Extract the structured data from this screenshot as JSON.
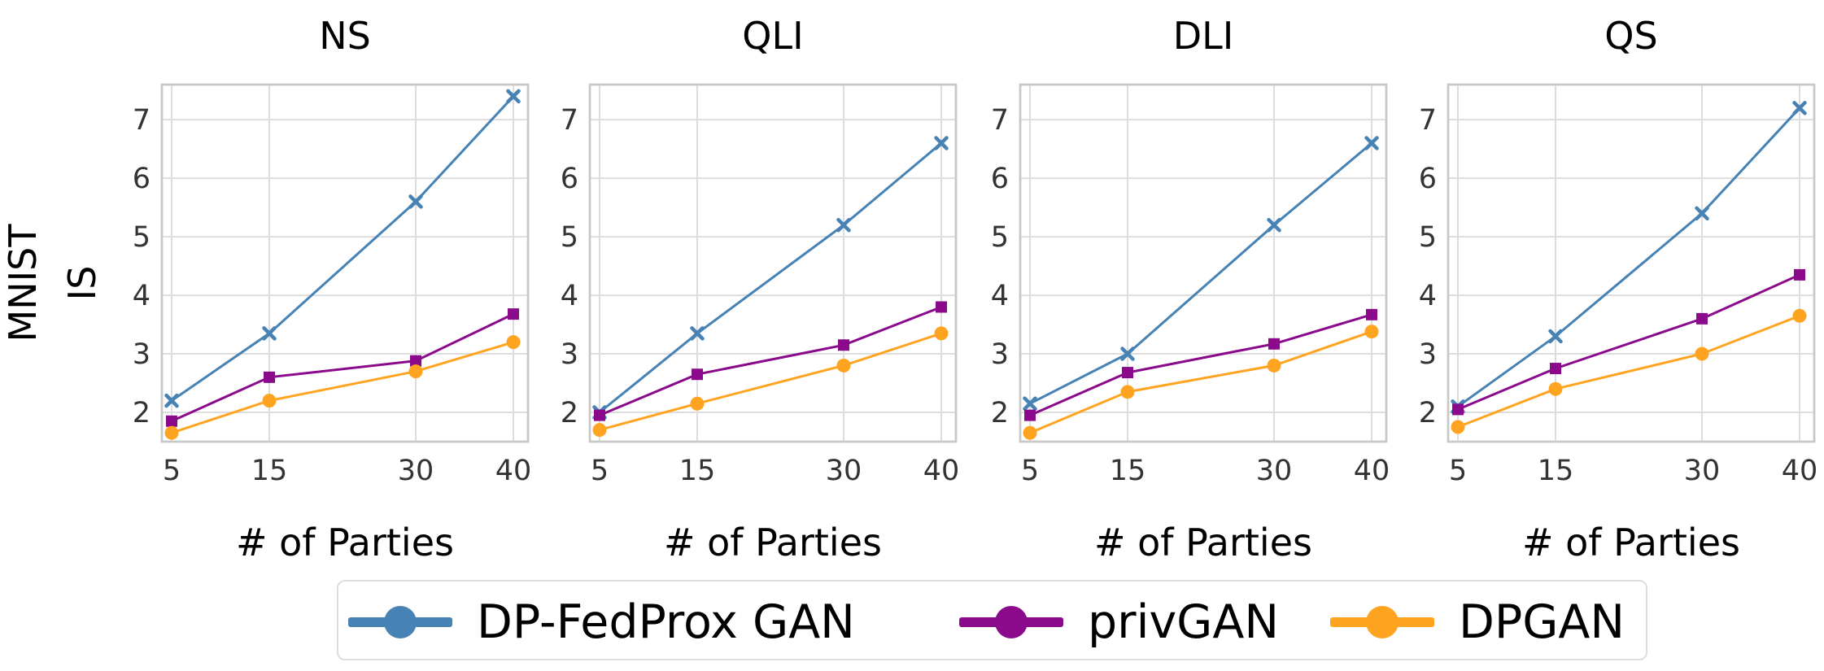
{
  "figure": {
    "ylabel_lines": [
      "MNIST",
      "IS"
    ]
  },
  "colors": {
    "DP-FedProx GAN": "#4682b4",
    "privGAN": "#8b0a8b",
    "DPGAN": "#ffa420"
  },
  "chart_data": [
    {
      "type": "line",
      "title": "NS",
      "xlabel": "# of Parties",
      "ylabel": "IS",
      "x": [
        5,
        15,
        30,
        40
      ],
      "xticks": [
        5,
        15,
        30,
        40
      ],
      "yticks": [
        2,
        3,
        4,
        5,
        6,
        7
      ],
      "xlim": [
        4,
        41.5
      ],
      "ylim": [
        1.5,
        7.6
      ],
      "grid": true,
      "series": [
        {
          "name": "DP-FedProx GAN",
          "marker": "x",
          "values": [
            2.2,
            3.35,
            5.6,
            7.4
          ]
        },
        {
          "name": "privGAN",
          "marker": "square",
          "values": [
            1.85,
            2.6,
            2.88,
            3.68
          ]
        },
        {
          "name": "DPGAN",
          "marker": "circle",
          "values": [
            1.65,
            2.2,
            2.7,
            3.2
          ]
        }
      ]
    },
    {
      "type": "line",
      "title": "QLI",
      "xlabel": "# of Parties",
      "ylabel": "IS",
      "x": [
        5,
        15,
        30,
        40
      ],
      "xticks": [
        5,
        15,
        30,
        40
      ],
      "yticks": [
        2,
        3,
        4,
        5,
        6,
        7
      ],
      "xlim": [
        4,
        41.5
      ],
      "ylim": [
        1.5,
        7.6
      ],
      "grid": true,
      "series": [
        {
          "name": "DP-FedProx GAN",
          "marker": "x",
          "values": [
            2.0,
            3.35,
            5.2,
            6.6
          ]
        },
        {
          "name": "privGAN",
          "marker": "square",
          "values": [
            1.95,
            2.65,
            3.15,
            3.8
          ]
        },
        {
          "name": "DPGAN",
          "marker": "circle",
          "values": [
            1.7,
            2.15,
            2.8,
            3.35
          ]
        }
      ]
    },
    {
      "type": "line",
      "title": "DLI",
      "xlabel": "# of Parties",
      "ylabel": "IS",
      "x": [
        5,
        15,
        30,
        40
      ],
      "xticks": [
        5,
        15,
        30,
        40
      ],
      "yticks": [
        2,
        3,
        4,
        5,
        6,
        7
      ],
      "xlim": [
        4,
        41.5
      ],
      "ylim": [
        1.5,
        7.6
      ],
      "grid": true,
      "series": [
        {
          "name": "DP-FedProx GAN",
          "marker": "x",
          "values": [
            2.15,
            3.0,
            5.2,
            6.6
          ]
        },
        {
          "name": "privGAN",
          "marker": "square",
          "values": [
            1.95,
            2.68,
            3.17,
            3.67
          ]
        },
        {
          "name": "DPGAN",
          "marker": "circle",
          "values": [
            1.65,
            2.35,
            2.8,
            3.38
          ]
        }
      ]
    },
    {
      "type": "line",
      "title": "QS",
      "xlabel": "# of Parties",
      "ylabel": "IS",
      "x": [
        5,
        15,
        30,
        40
      ],
      "xticks": [
        5,
        15,
        30,
        40
      ],
      "yticks": [
        2,
        3,
        4,
        5,
        6,
        7
      ],
      "xlim": [
        4,
        41.5
      ],
      "ylim": [
        1.5,
        7.6
      ],
      "grid": true,
      "series": [
        {
          "name": "DP-FedProx GAN",
          "marker": "x",
          "values": [
            2.1,
            3.3,
            5.4,
            7.2
          ]
        },
        {
          "name": "privGAN",
          "marker": "square",
          "values": [
            2.05,
            2.75,
            3.6,
            4.35
          ]
        },
        {
          "name": "DPGAN",
          "marker": "circle",
          "values": [
            1.75,
            2.4,
            3.0,
            3.65
          ]
        }
      ]
    }
  ],
  "legend": {
    "position": "bottom-center",
    "items": [
      {
        "label": "DP-FedProx GAN"
      },
      {
        "label": "privGAN"
      },
      {
        "label": "DPGAN"
      }
    ]
  }
}
